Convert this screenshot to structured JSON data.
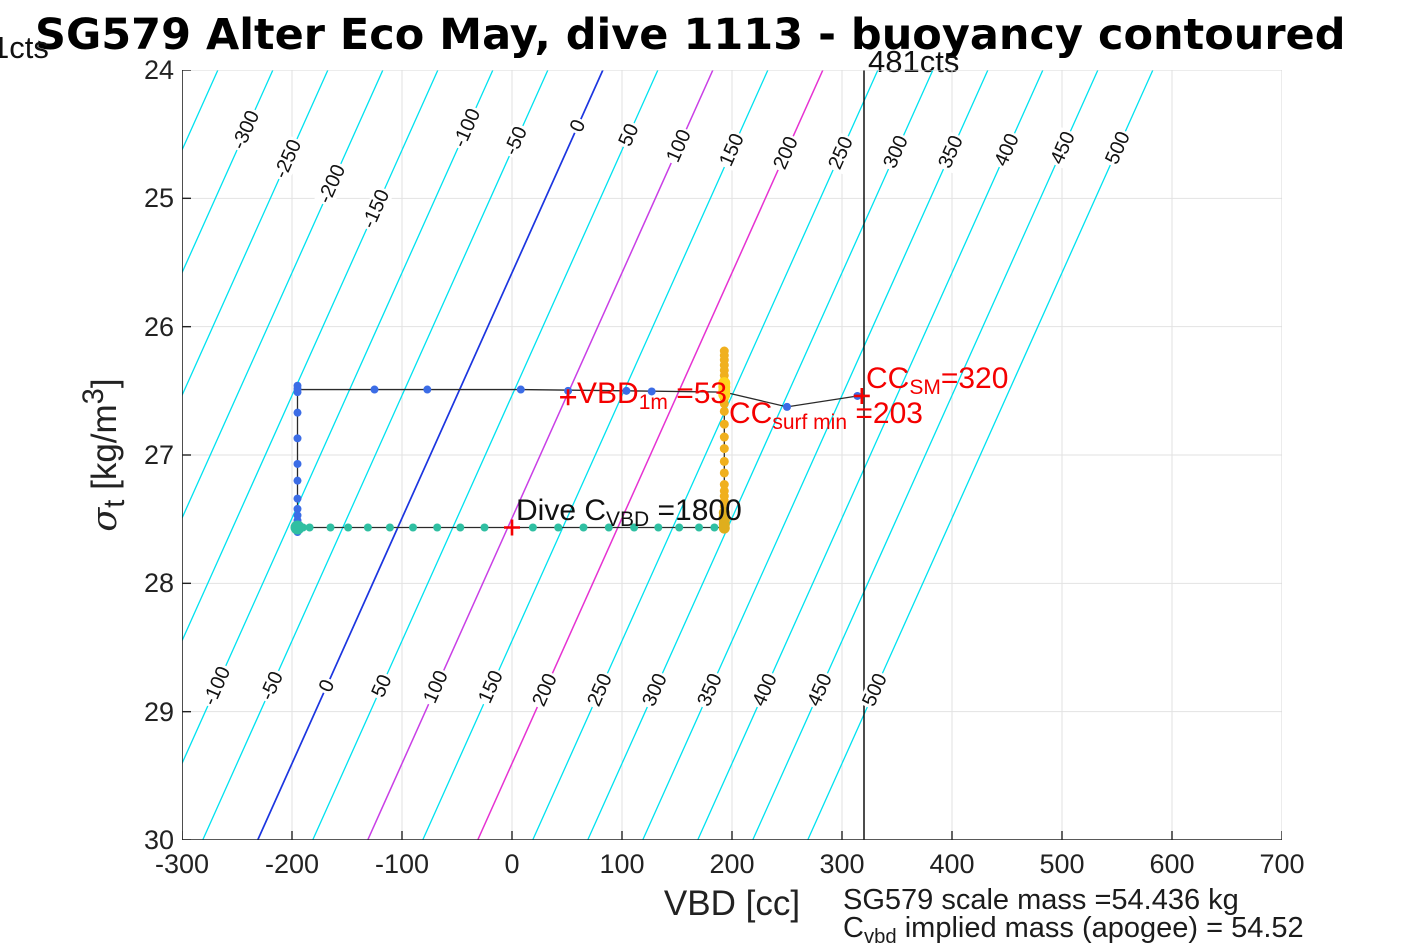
{
  "title": "SG579 Alter Eco May, dive 1113 - buoyancy contoured",
  "corner_labels": {
    "left_cts": "1cts",
    "line_cts": "481cts"
  },
  "axes": {
    "x_label": "VBD [cc]",
    "y_label_parts": {
      "sigma": "σ",
      "sub": "t",
      "mid": " [kg/m",
      "sup": "3",
      "end": "]"
    },
    "x_ticks": [
      -300,
      -200,
      -100,
      0,
      100,
      200,
      300,
      400,
      500,
      600,
      700
    ],
    "y_ticks": [
      24,
      25,
      26,
      27,
      28,
      29,
      30
    ]
  },
  "annotations": {
    "vbd_1m": {
      "main": "VBD",
      "sub": "1m",
      "rest": " =53",
      "value": 53,
      "color": "red"
    },
    "cc_sm": {
      "main": "CC",
      "sub": "SM",
      "rest": "=320",
      "value": 320,
      "color": "red"
    },
    "cc_surf": {
      "main": "CC",
      "sub": "surf min",
      "rest": " =203",
      "value": 203,
      "color": "red"
    },
    "dive_cvbd": {
      "main": "Dive C",
      "sub": "VBD",
      "rest": " =1800",
      "value": 1800,
      "color": "black"
    }
  },
  "footer": {
    "line1": "SG579 scale mass =54.436 kg",
    "line2_main": "C",
    "line2_sub": "vbd",
    "line2_rest": " implied mass (apogee) = 54.52"
  },
  "chart_data": {
    "type": "scatter",
    "title": "SG579 Alter Eco May, dive 1113 - buoyancy contoured",
    "xlabel": "VBD [cc]",
    "ylabel": "sigma_t [kg/m^3]",
    "xlim": [
      -300,
      700
    ],
    "ylim_reversed": [
      24,
      30
    ],
    "grid": true,
    "colors": {
      "contour_default": "#00e2f0",
      "contour_zero": "#1b35e0",
      "contour_100": "#c93fe6",
      "contour_200": "#e632d2",
      "grid": "#e2e2e2",
      "spine": "#222222",
      "box": "#d9d9d9",
      "dive_dots": "#3b6ce6",
      "climb_dots": "#2fbfa2",
      "vbd_dots": "#f0b01e",
      "vbd_dots_bright": "#ffd41c",
      "marker_plus": "#f40000",
      "track_line": "#2a2a2a"
    },
    "contours": {
      "levels": [
        -350,
        -300,
        -250,
        -200,
        -150,
        -100,
        -50,
        0,
        50,
        100,
        150,
        200,
        250,
        300,
        350,
        400,
        450,
        500
      ],
      "unit": "cc",
      "cc_per_sigma": 52.3,
      "neutral_sigma": 25.58,
      "upper_labels": [
        {
          "c": -300,
          "s": 24.47
        },
        {
          "c": -250,
          "s": 24.69
        },
        {
          "c": -200,
          "s": 24.89
        },
        {
          "c": -150,
          "s": 25.08
        },
        {
          "c": -100,
          "s": 24.45
        },
        {
          "c": -50,
          "s": 24.55
        },
        {
          "c": 0,
          "s": 24.44
        },
        {
          "c": 50,
          "s": 24.51
        },
        {
          "c": 100,
          "s": 24.59
        },
        {
          "c": 150,
          "s": 24.62
        },
        {
          "c": 200,
          "s": 24.65
        },
        {
          "c": 250,
          "s": 24.65
        },
        {
          "c": 300,
          "s": 24.64
        },
        {
          "c": 350,
          "s": 24.64
        },
        {
          "c": 400,
          "s": 24.62
        },
        {
          "c": 450,
          "s": 24.61
        },
        {
          "c": 500,
          "s": 24.61
        }
      ],
      "lower_labels": [
        {
          "c": -100,
          "s": 28.8
        },
        {
          "c": -50,
          "s": 28.8
        },
        {
          "c": 0,
          "s": 28.8
        },
        {
          "c": 50,
          "s": 28.8
        },
        {
          "c": 100,
          "s": 28.81
        },
        {
          "c": 150,
          "s": 28.81
        },
        {
          "c": 200,
          "s": 28.83
        },
        {
          "c": 250,
          "s": 28.83
        },
        {
          "c": 300,
          "s": 28.83
        },
        {
          "c": 350,
          "s": 28.83
        },
        {
          "c": 400,
          "s": 28.83
        },
        {
          "c": 450,
          "s": 28.83
        },
        {
          "c": 500,
          "s": 28.83
        }
      ]
    },
    "vertical_line_cc": 320,
    "series": [
      {
        "name": "dive",
        "color": "#3b6ce6",
        "r": 4,
        "points": [
          [
            -195,
            26.46
          ],
          [
            -195,
            26.485
          ],
          [
            -195,
            26.51
          ],
          [
            -195,
            26.67
          ],
          [
            -195,
            26.87
          ],
          [
            -195,
            27.07
          ],
          [
            -195,
            27.2
          ],
          [
            -195,
            27.34
          ],
          [
            -195,
            27.42
          ],
          [
            -195,
            27.47
          ],
          [
            -195,
            27.51
          ],
          [
            -195,
            27.545
          ],
          [
            -195,
            27.575
          ],
          [
            -195,
            27.6
          ],
          [
            -125,
            26.49
          ],
          [
            -77,
            26.49
          ],
          [
            8,
            26.49
          ],
          [
            51,
            26.5
          ],
          [
            104,
            26.5
          ],
          [
            127,
            26.505
          ],
          [
            193,
            26.51
          ],
          [
            250,
            26.625
          ],
          [
            314,
            26.54
          ]
        ]
      },
      {
        "name": "climb",
        "color": "#2fbfa2",
        "r": 4,
        "points": [
          [
            -190,
            27.565
          ],
          [
            -184,
            27.565
          ],
          [
            -165,
            27.565
          ],
          [
            -149,
            27.565
          ],
          [
            -131,
            27.565
          ],
          [
            -111,
            27.565
          ],
          [
            -90,
            27.565
          ],
          [
            -68,
            27.565
          ],
          [
            -47,
            27.565
          ],
          [
            -25,
            27.565
          ],
          [
            19,
            27.565
          ],
          [
            42,
            27.565
          ],
          [
            65,
            27.565
          ],
          [
            88,
            27.565
          ],
          [
            111,
            27.565
          ],
          [
            133,
            27.565
          ],
          [
            152,
            27.565
          ],
          [
            170,
            27.565
          ],
          [
            184,
            27.565
          ]
        ]
      },
      {
        "name": "climb-start",
        "color": "#2fbfa2",
        "r": 7,
        "points": [
          [
            -195,
            27.565
          ]
        ]
      },
      {
        "name": "vbd-move",
        "color": "#f0b01e",
        "r": 4.5,
        "points": [
          [
            193,
            26.19
          ],
          [
            193,
            26.225
          ],
          [
            193,
            26.26
          ],
          [
            193,
            26.3
          ],
          [
            193,
            26.34
          ],
          [
            193,
            26.38
          ],
          [
            193,
            26.42
          ],
          [
            193,
            26.56
          ],
          [
            193,
            26.6
          ],
          [
            193,
            26.66
          ],
          [
            193,
            26.76
          ],
          [
            193,
            26.86
          ],
          [
            193,
            26.95
          ],
          [
            193,
            27.05
          ],
          [
            193,
            27.14
          ],
          [
            193,
            27.23
          ],
          [
            193,
            27.28
          ],
          [
            193,
            27.32
          ],
          [
            193,
            27.36
          ],
          [
            193,
            27.4
          ]
        ]
      },
      {
        "name": "vbd-move-dense",
        "color": "#dfae1d",
        "r": 5.5,
        "points": [
          [
            193,
            27.45
          ],
          [
            193,
            27.48
          ],
          [
            193,
            27.51
          ],
          [
            193,
            27.54
          ],
          [
            193,
            27.57
          ]
        ]
      },
      {
        "name": "vbd-move-bright",
        "color": "#ffd41c",
        "r": 6,
        "points": [
          [
            193,
            26.44
          ],
          [
            193,
            26.47
          ],
          [
            193,
            26.5
          ],
          [
            193,
            26.53
          ]
        ]
      }
    ],
    "track_lines": [
      [
        [
          -195,
          26.49
        ],
        [
          -125,
          26.49
        ],
        [
          8,
          26.49
        ],
        [
          104,
          26.5
        ],
        [
          193,
          26.51
        ],
        [
          250,
          26.625
        ],
        [
          314,
          26.54
        ]
      ],
      [
        [
          -195,
          26.49
        ],
        [
          -195,
          27.565
        ]
      ],
      [
        [
          -195,
          27.565
        ],
        [
          193,
          27.565
        ]
      ],
      [
        [
          193,
          26.18
        ],
        [
          193,
          27.58
        ]
      ]
    ],
    "plus_markers": [
      [
        51,
        26.55
      ],
      [
        318,
        26.54
      ],
      [
        0,
        27.565
      ]
    ]
  }
}
